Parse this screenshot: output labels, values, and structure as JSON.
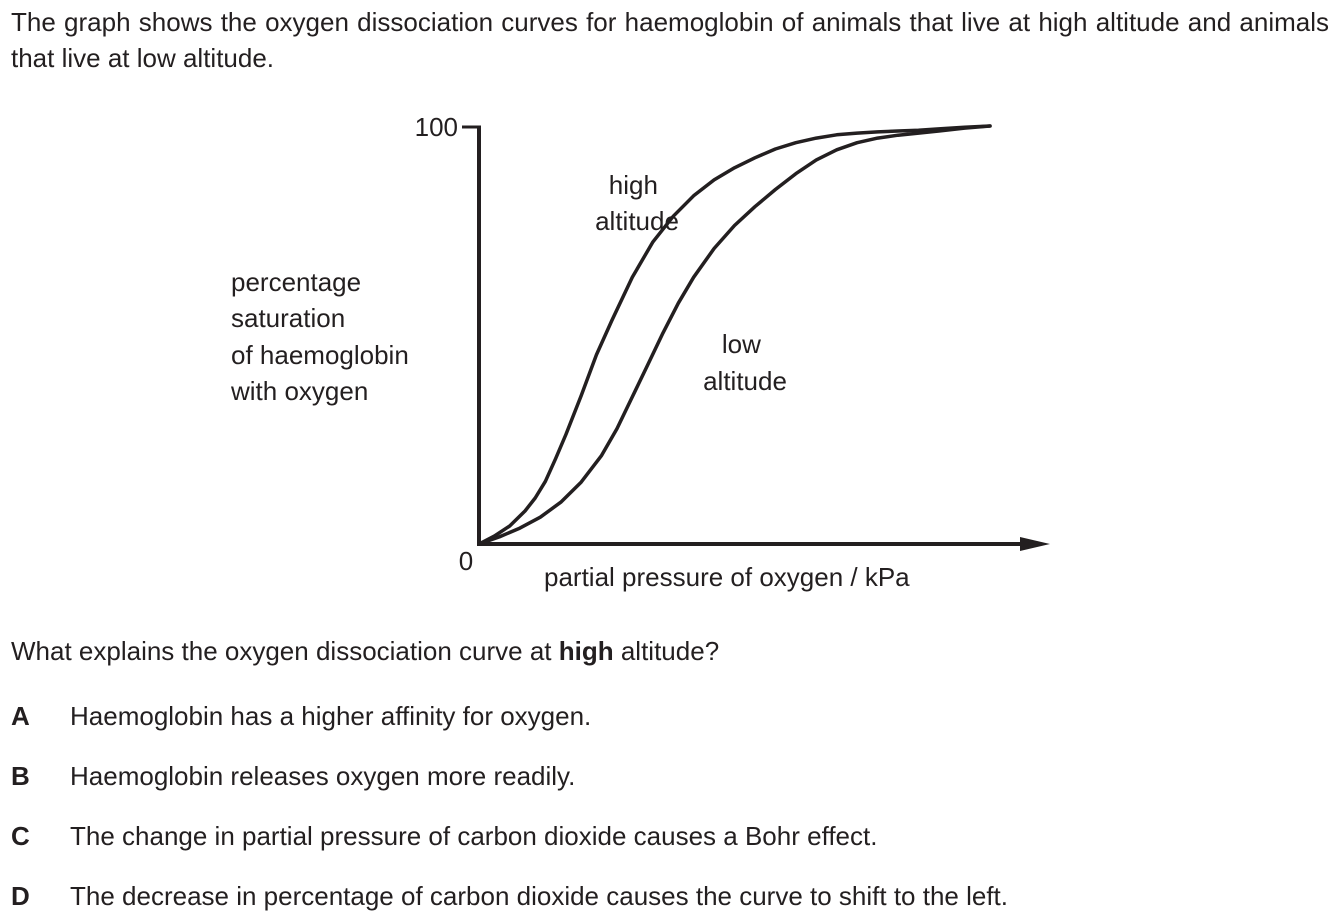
{
  "intro_text": "The graph shows the oxygen dissociation curves for haemoglobin of animals that live at high altitude and animals that live at low altitude.",
  "chart_data": {
    "type": "line",
    "xlabel": "partial pressure of oxygen / kPa",
    "ylabel": [
      "percentage",
      "saturation",
      "of haemoglobin",
      "with oxygen"
    ],
    "y_ticks": [
      "100",
      "0"
    ],
    "ylim": [
      0,
      100
    ],
    "x_axis_arrow": true,
    "grid": false,
    "series": [
      {
        "name": "high altitude",
        "label_lines": [
          "high",
          "altitude"
        ],
        "x": [
          0,
          3,
          6,
          9,
          11,
          13,
          15,
          17,
          20,
          23,
          26,
          30,
          34,
          38,
          42,
          46,
          50,
          54,
          58,
          62,
          66,
          70,
          74,
          78,
          82,
          86,
          90,
          95,
          100
        ],
        "values": [
          0,
          1.9,
          4.3,
          7.9,
          11.0,
          15.0,
          20.4,
          26.2,
          35.5,
          45.3,
          53.5,
          63.8,
          72.2,
          78.4,
          83.3,
          87.1,
          90.0,
          92.4,
          94.5,
          96.0,
          97.1,
          97.9,
          98.3,
          98.6,
          98.8,
          99.0,
          99.3,
          99.7,
          100
        ]
      },
      {
        "name": "low altitude",
        "label_lines": [
          "low",
          "altitude"
        ],
        "x": [
          0,
          4,
          8,
          12,
          16,
          20,
          24,
          27,
          30,
          33,
          36,
          39,
          42,
          46,
          50,
          54,
          58,
          62,
          66,
          70,
          74,
          78,
          82,
          86,
          90,
          95,
          100
        ],
        "values": [
          0,
          1.7,
          3.8,
          6.4,
          10.0,
          14.8,
          21.2,
          27.6,
          35.2,
          42.8,
          50.5,
          57.6,
          63.8,
          70.7,
          76.2,
          80.7,
          84.8,
          88.6,
          91.9,
          94.3,
          96.0,
          97.1,
          97.8,
          98.3,
          98.8,
          99.5,
          100
        ]
      }
    ]
  },
  "question": {
    "before_bold": "What explains the oxygen dissociation curve at ",
    "bold": "high",
    "after_bold": " altitude?"
  },
  "options": [
    {
      "letter": "A",
      "text": "Haemoglobin has a higher affinity for oxygen."
    },
    {
      "letter": "B",
      "text": "Haemoglobin releases oxygen more readily."
    },
    {
      "letter": "C",
      "text": "The change in partial pressure of carbon dioxide causes a Bohr effect."
    },
    {
      "letter": "D",
      "text": "The decrease in percentage of carbon dioxide causes the curve to shift to the left."
    }
  ]
}
